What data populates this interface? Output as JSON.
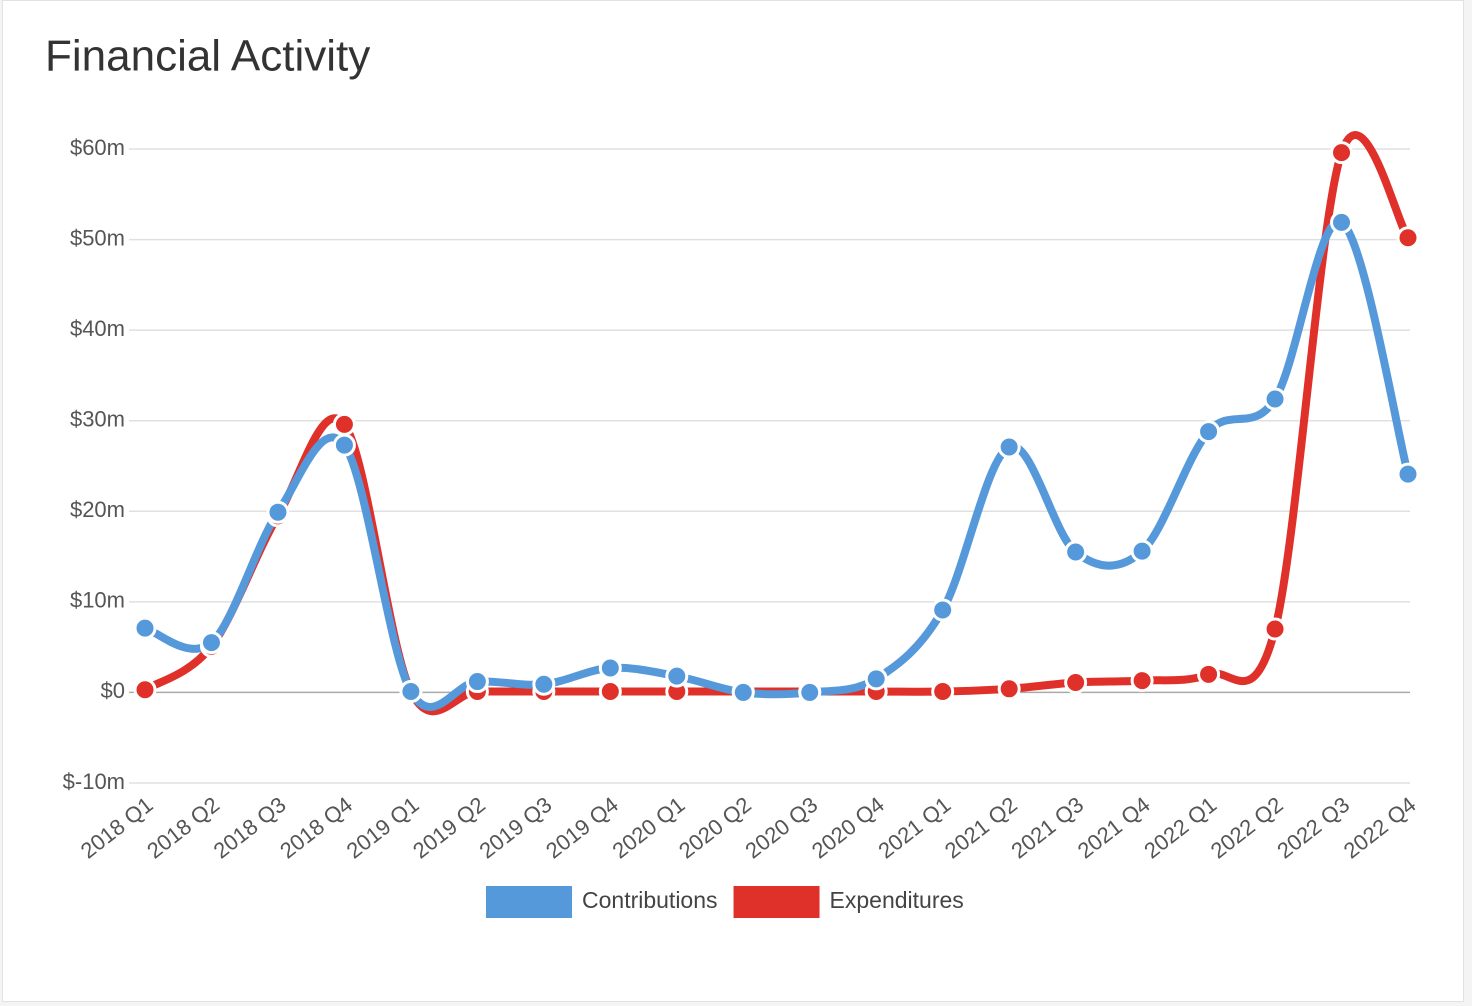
{
  "chart_data": {
    "type": "line",
    "title": "Financial Activity",
    "categories": [
      "2018 Q1",
      "2018 Q2",
      "2018 Q3",
      "2018 Q4",
      "2019 Q1",
      "2019 Q2",
      "2019 Q3",
      "2019 Q4",
      "2020 Q1",
      "2020 Q2",
      "2020 Q3",
      "2020 Q4",
      "2021 Q1",
      "2021 Q2",
      "2021 Q3",
      "2021 Q4",
      "2022 Q1",
      "2022 Q2",
      "2022 Q3",
      "2022 Q4"
    ],
    "series": [
      {
        "name": "Contributions",
        "color": "#5599db",
        "values": [
          7.1,
          5.5,
          19.9,
          27.3,
          0.1,
          1.2,
          0.9,
          2.7,
          1.8,
          0,
          0,
          1.5,
          9.1,
          27.1,
          15.5,
          15.6,
          28.8,
          32.4,
          51.9,
          24.1
        ]
      },
      {
        "name": "Expenditures",
        "color": "#e0302a",
        "values": [
          0.3,
          5.1,
          19.5,
          29.6,
          0.1,
          0.1,
          0.1,
          0.1,
          0.1,
          0.1,
          0.1,
          0.1,
          0.1,
          0.4,
          1.1,
          1.3,
          2.0,
          7.0,
          59.6,
          50.2
        ]
      }
    ],
    "ylim": [
      -10,
      60
    ],
    "yticks": [
      {
        "value": -10,
        "label": "$-10m"
      },
      {
        "value": 0,
        "label": "$0"
      },
      {
        "value": 10,
        "label": "$10m"
      },
      {
        "value": 20,
        "label": "$20m"
      },
      {
        "value": 30,
        "label": "$30m"
      },
      {
        "value": 40,
        "label": "$40m"
      },
      {
        "value": 50,
        "label": "$50m"
      },
      {
        "value": 60,
        "label": "$60m"
      }
    ],
    "grid": true,
    "legend": "bottom"
  }
}
